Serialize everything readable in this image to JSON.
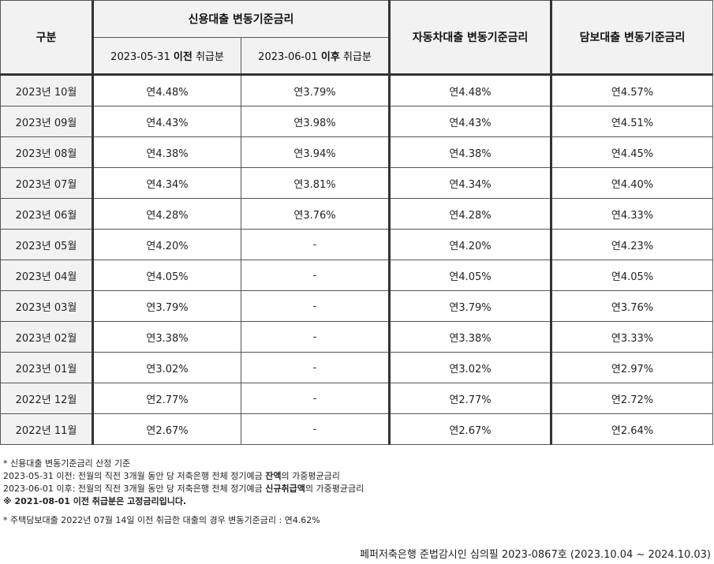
{
  "header": {
    "category": "구분",
    "credit_loan": "신용대출 변동기준금리",
    "before_date": "2023-05-31",
    "before_word": "이전",
    "before_suffix": "취급분",
    "after_date": "2023-06-01",
    "after_word": "이후",
    "after_suffix": "취급분",
    "auto_loan": "자동차대출 변동기준금리",
    "secured_loan": "담보대출 변동기준금리"
  },
  "rows": [
    {
      "month": "2023년 10월",
      "before": "연4.48%",
      "after": "연3.79%",
      "auto": "연4.48%",
      "secured": "연4.57%"
    },
    {
      "month": "2023년 09월",
      "before": "연4.43%",
      "after": "연3.98%",
      "auto": "연4.43%",
      "secured": "연4.51%"
    },
    {
      "month": "2023년 08월",
      "before": "연4.38%",
      "after": "연3.94%",
      "auto": "연4.38%",
      "secured": "연4.45%"
    },
    {
      "month": "2023년 07월",
      "before": "연4.34%",
      "after": "연3.81%",
      "auto": "연4.34%",
      "secured": "연4.40%"
    },
    {
      "month": "2023년 06월",
      "before": "연4.28%",
      "after": "연3.76%",
      "auto": "연4.28%",
      "secured": "연4.33%"
    },
    {
      "month": "2023년 05월",
      "before": "연4.20%",
      "after": "-",
      "auto": "연4.20%",
      "secured": "연4.23%"
    },
    {
      "month": "2023년 04월",
      "before": "연4.05%",
      "after": "-",
      "auto": "연4.05%",
      "secured": "연4.05%"
    },
    {
      "month": "2023년 03월",
      "before": "연3.79%",
      "after": "-",
      "auto": "연3.79%",
      "secured": "연3.76%"
    },
    {
      "month": "2023년 02월",
      "before": "연3.38%",
      "after": "-",
      "auto": "연3.38%",
      "secured": "연3.33%"
    },
    {
      "month": "2023년 01월",
      "before": "연3.02%",
      "after": "-",
      "auto": "연3.02%",
      "secured": "연2.97%"
    },
    {
      "month": "2022년 12월",
      "before": "연2.77%",
      "after": "-",
      "auto": "연2.77%",
      "secured": "연2.72%"
    },
    {
      "month": "2022년 11월",
      "before": "연2.67%",
      "after": "-",
      "auto": "연2.67%",
      "secured": "연2.64%"
    }
  ],
  "notes": {
    "line1": "* 신용대출 변동기준금리 산정 기준",
    "line2_prefix": "2023-05-31 이전: 전월의 직전 3개월 동안 당 저축은행 전체 정기예금 ",
    "line2_bold": "잔액",
    "line2_suffix": "의 가중평균금리",
    "line3_prefix": "2023-06-01 이후: 전월의 직전 3개월 동안 당 저축은행 전체 정기예금 ",
    "line3_bold": "신규취급액",
    "line3_suffix": "의 가중평균금리",
    "line4": "※ 2021-08-01 이전 취급분은 고정금리입니다.",
    "line5": "* 주택담보대출 2022년 07월 14일 이전 취급한 대출의 경우 변동기준금리 : 연4.62%"
  },
  "footer": "페퍼저축은행 준법감시인 심의필 2023-0867호 (2023.10.04 ~ 2024.10.03)"
}
